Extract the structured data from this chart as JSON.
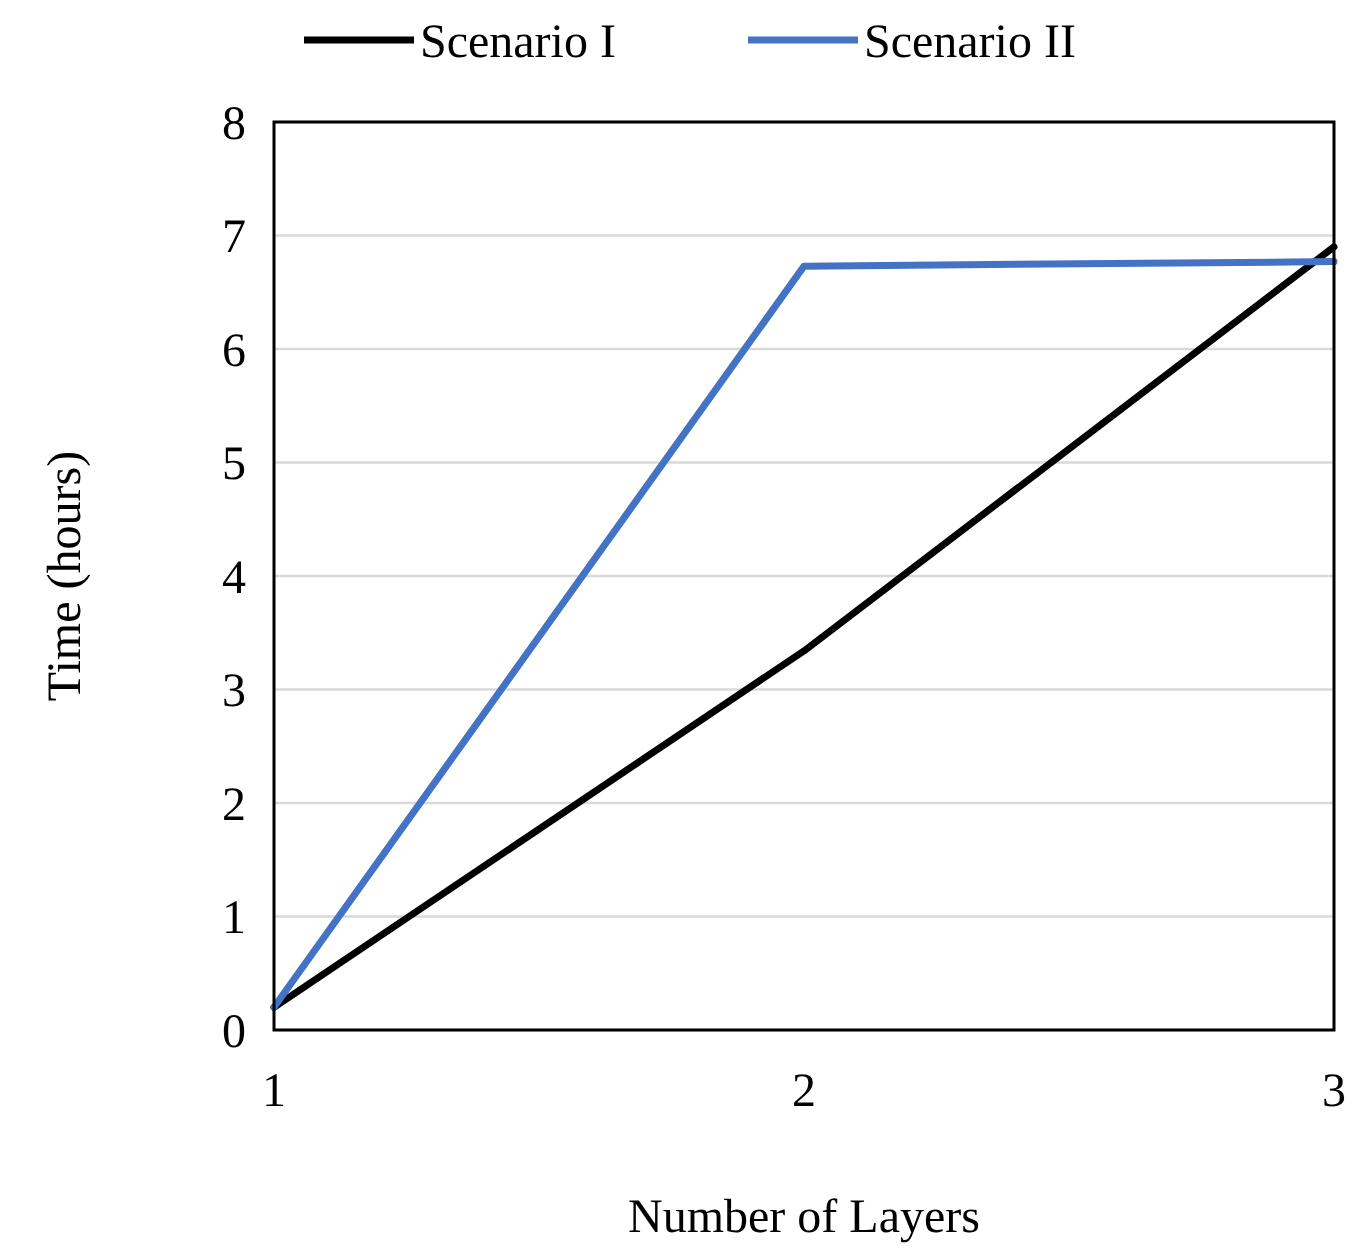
{
  "chart_data": {
    "type": "line",
    "xlabel": "Number of Layers",
    "ylabel": "Time (hours)",
    "x": [
      1,
      2,
      3
    ],
    "series": [
      {
        "name": "Scenario I",
        "color": "#000000",
        "values": [
          0.2,
          3.34,
          6.9
        ]
      },
      {
        "name": "Scenario II",
        "color": "#4472c4",
        "values": [
          0.2,
          6.73,
          6.77
        ]
      }
    ],
    "xlim": [
      1,
      3
    ],
    "xticks": [
      1,
      2,
      3
    ],
    "ylim": [
      0,
      8
    ],
    "yticks": [
      0,
      1,
      2,
      3,
      4,
      5,
      6,
      7,
      8
    ],
    "grid": "y",
    "legend": "top",
    "marker": "none",
    "line_style": "solid"
  }
}
